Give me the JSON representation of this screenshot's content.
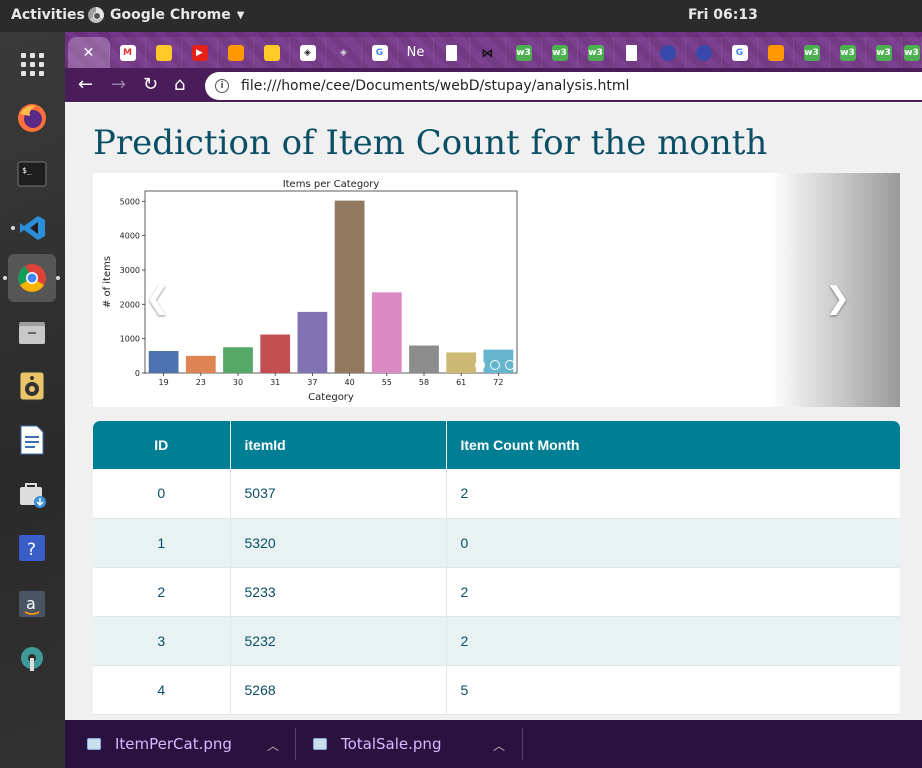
{
  "system": {
    "activities": "Activities",
    "app_name": "Google Chrome",
    "clock": "Fri 06:13"
  },
  "dock": {
    "items": [
      "show-apps",
      "firefox",
      "terminal",
      "vscode",
      "chrome",
      "files",
      "rhythmbox",
      "libreoffice-writer",
      "software-updater",
      "help",
      "amazon",
      "settings"
    ]
  },
  "browser": {
    "active_tab_close": "✕",
    "tabs": [
      "gmail",
      "firebase",
      "youtube",
      "sublime",
      "firebase",
      "codepen",
      "codepen",
      "google",
      "Ne",
      "file",
      "bow",
      "w3",
      "w3",
      "w3",
      "file",
      "globe",
      "globe",
      "google",
      "sublime",
      "w3",
      "w3",
      "w3",
      "w3"
    ],
    "tab_text_ne": "Ne",
    "tab_text_w3": "w3",
    "url": "file:///home/cee/Documents/webD/stupay/analysis.html"
  },
  "page": {
    "title": "Prediction of Item Count for the month",
    "carousel": {
      "prev": "❮",
      "next": "❯",
      "slides": 3,
      "active_slide": 1
    },
    "table": {
      "headers": [
        "ID",
        "itemId",
        "Item Count Month"
      ],
      "rows": [
        [
          "0",
          "5037",
          "2"
        ],
        [
          "1",
          "5320",
          "0"
        ],
        [
          "2",
          "5233",
          "2"
        ],
        [
          "3",
          "5232",
          "2"
        ],
        [
          "4",
          "5268",
          "5"
        ]
      ]
    }
  },
  "chart_data": {
    "type": "bar",
    "title": "Items per Category",
    "xlabel": "Category",
    "ylabel": "# of items",
    "categories": [
      "19",
      "23",
      "30",
      "31",
      "37",
      "40",
      "55",
      "58",
      "61",
      "72"
    ],
    "values": [
      640,
      500,
      750,
      1120,
      1780,
      5020,
      2350,
      800,
      600,
      680
    ],
    "colors": [
      "#4c72b0",
      "#dd8452",
      "#55a868",
      "#c44e52",
      "#8172b3",
      "#937860",
      "#da8bc3",
      "#8c8c8c",
      "#ccb974",
      "#64b5cd"
    ],
    "ylim": [
      0,
      5300
    ],
    "yticks": [
      0,
      1000,
      2000,
      3000,
      4000,
      5000
    ],
    "grid": false
  },
  "downloads": [
    {
      "name": "ItemPerCat.png"
    },
    {
      "name": "TotalSale.png"
    }
  ]
}
